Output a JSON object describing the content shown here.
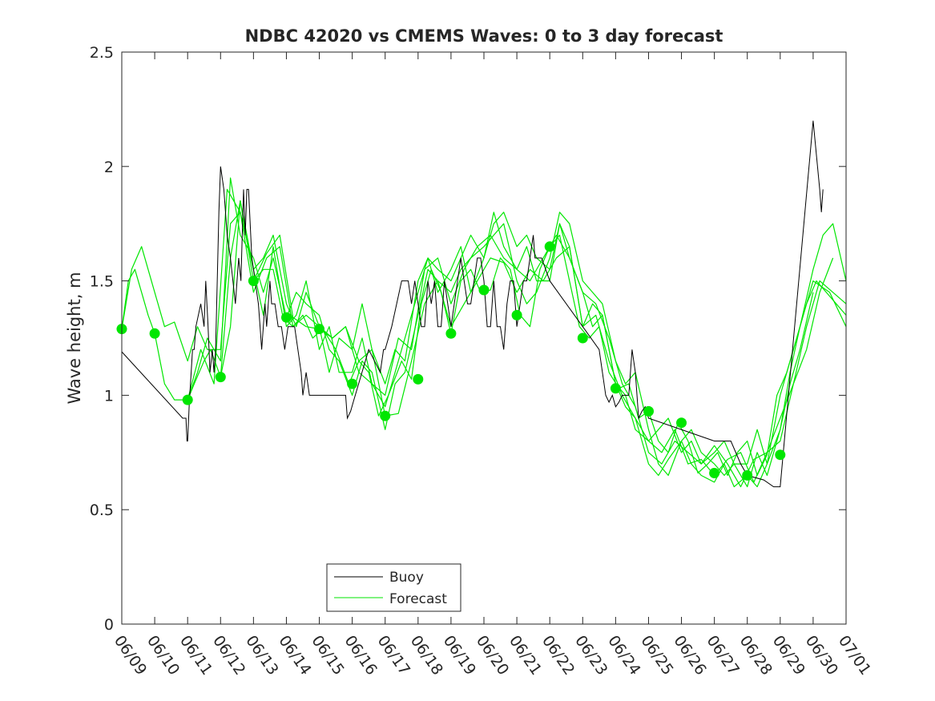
{
  "chart_data": {
    "type": "line",
    "title": "NDBC 42020 vs CMEMS Waves: 0 to 3 day forecast",
    "xlabel": "",
    "ylabel": "Wave height, m",
    "xlim": [
      0,
      22
    ],
    "ylim": [
      0,
      2.5
    ],
    "x_tick_labels": [
      "06/09",
      "06/10",
      "06/11",
      "06/12",
      "06/13",
      "06/14",
      "06/15",
      "06/16",
      "06/17",
      "06/18",
      "06/19",
      "06/20",
      "06/21",
      "06/22",
      "06/23",
      "06/24",
      "06/25",
      "06/26",
      "06/27",
      "06/28",
      "06/29",
      "06/30",
      "07/01"
    ],
    "y_ticks": [
      0,
      0.5,
      1,
      1.5,
      2,
      2.5
    ],
    "y_tick_labels": [
      "0",
      "0.5",
      "1",
      "1.5",
      "2",
      "2.5"
    ],
    "grid": false,
    "legend": {
      "position": "bottom-left",
      "entries": [
        "Buoy",
        "Forecast"
      ]
    },
    "colors": {
      "buoy": "#000000",
      "forecast": "#00e600",
      "axes": "#262626"
    },
    "buoy": {
      "name": "Buoy",
      "x": [
        0,
        1.85,
        1.95,
        1.98,
        2.0,
        2.05,
        2.15,
        2.2,
        2.25,
        2.4,
        2.5,
        2.55,
        2.62,
        2.68,
        2.75,
        2.8,
        2.85,
        2.95,
        3.0,
        3.1,
        3.2,
        3.3,
        3.45,
        3.55,
        3.62,
        3.7,
        3.75,
        3.8,
        3.85,
        3.95,
        4.05,
        4.15,
        4.2,
        4.25,
        4.35,
        4.4,
        4.5,
        4.55,
        4.65,
        4.75,
        4.85,
        4.95,
        5.05,
        5.1,
        5.15,
        5.25,
        5.35,
        5.45,
        5.5,
        5.6,
        5.7,
        5.8,
        5.9,
        6.0,
        6.5,
        6.7,
        6.8,
        6.85,
        6.95,
        7.05,
        7.5,
        7.85,
        7.95,
        8.0,
        8.2,
        8.5,
        8.6,
        8.7,
        8.8,
        8.9,
        9.1,
        9.2,
        9.3,
        9.4,
        9.5,
        9.6,
        9.7,
        9.8,
        9.9,
        10.0,
        10.1,
        10.2,
        10.3,
        10.4,
        10.5,
        10.6,
        10.7,
        10.8,
        10.9,
        11.0,
        11.1,
        11.2,
        11.3,
        11.4,
        11.5,
        11.6,
        11.7,
        11.8,
        11.9,
        12.0,
        12.1,
        12.2,
        12.3,
        12.4,
        12.5,
        12.55,
        12.65,
        12.75,
        13.0,
        14.0,
        14.5,
        14.6,
        14.7,
        14.8,
        14.9,
        15.0,
        15.1,
        15.2,
        15.3,
        15.4,
        15.5,
        15.6,
        15.7,
        15.8,
        15.9,
        16.0,
        18.0,
        18.5,
        18.8,
        19.0,
        19.5,
        19.8,
        20.0,
        21.0,
        21.2,
        21.25,
        21.3
      ],
      "y": [
        1.19,
        0.9,
        0.9,
        0.8,
        0.8,
        0.96,
        1.2,
        1.2,
        1.3,
        1.4,
        1.3,
        1.5,
        1.3,
        1.1,
        1.2,
        1.1,
        1.2,
        1.8,
        2.0,
        1.9,
        1.7,
        1.6,
        1.4,
        1.6,
        1.5,
        1.9,
        1.7,
        1.9,
        1.9,
        1.6,
        1.5,
        1.4,
        1.3,
        1.2,
        1.4,
        1.3,
        1.5,
        1.4,
        1.4,
        1.3,
        1.3,
        1.2,
        1.3,
        1.3,
        1.3,
        1.3,
        1.2,
        1.1,
        1.0,
        1.1,
        1.0,
        1.0,
        1.0,
        1.0,
        1.0,
        1.0,
        1.0,
        0.9,
        0.93,
        0.98,
        1.2,
        1.1,
        1.2,
        1.2,
        1.3,
        1.5,
        1.5,
        1.5,
        1.4,
        1.5,
        1.3,
        1.3,
        1.5,
        1.4,
        1.5,
        1.3,
        1.3,
        1.5,
        1.4,
        1.3,
        1.4,
        1.5,
        1.6,
        1.5,
        1.4,
        1.4,
        1.5,
        1.6,
        1.6,
        1.5,
        1.3,
        1.3,
        1.5,
        1.3,
        1.3,
        1.2,
        1.4,
        1.5,
        1.5,
        1.3,
        1.4,
        1.5,
        1.5,
        1.6,
        1.7,
        1.6,
        1.6,
        1.6,
        1.5,
        1.3,
        1.2,
        1.1,
        1.0,
        0.97,
        1.0,
        0.95,
        0.97,
        1.0,
        1.0,
        1.0,
        1.2,
        1.1,
        0.9,
        0.93,
        0.95,
        0.9,
        0.8,
        0.8,
        0.7,
        0.65,
        0.63,
        0.6,
        0.6,
        2.2,
        1.9,
        1.8,
        1.9
      ]
    },
    "forecast_start_points": {
      "x": [
        0,
        1,
        2,
        3,
        4,
        5,
        6,
        7,
        8,
        9,
        10,
        11,
        12,
        13,
        14,
        15,
        16,
        17,
        18,
        19,
        20
      ],
      "y": [
        1.29,
        1.27,
        0.98,
        1.08,
        1.5,
        1.34,
        1.29,
        1.05,
        0.91,
        1.07,
        1.27,
        1.46,
        1.35,
        1.65,
        1.25,
        1.03,
        0.93,
        0.88,
        0.66,
        0.65,
        0.74
      ]
    },
    "forecast_series": [
      {
        "x": [
          0,
          0.2,
          0.4,
          0.6,
          0.8,
          1.0,
          1.3,
          1.6,
          2.0,
          2.2,
          2.5,
          2.7,
          3.0,
          3.3,
          3.6,
          4.0,
          4.3,
          4.6,
          4.9,
          5.2,
          5.5,
          5.8,
          6.1,
          6.5,
          6.9,
          7.2,
          7.5,
          7.8,
          8.1,
          8.5,
          8.8,
          9.1,
          9.4,
          9.7,
          10.0,
          10.3,
          10.6,
          10.9,
          11.2,
          11.5,
          11.8,
          12.1,
          12.4,
          12.7,
          13.0,
          13.3,
          13.6,
          13.9,
          14.2,
          14.5,
          14.8,
          15.1,
          15.4,
          15.7,
          16.0,
          16.3,
          16.6,
          16.9,
          17.2,
          17.5,
          17.8,
          18.1,
          18.4,
          18.7,
          19.0,
          19.3,
          19.6,
          19.9,
          20.2,
          20.5,
          20.8,
          21.1,
          21.4,
          21.7,
          22.0
        ],
        "y": [
          1.29,
          1.5,
          1.55,
          1.45,
          1.35,
          1.27,
          1.05,
          0.98,
          0.98,
          1.05,
          1.15,
          1.2,
          1.08,
          1.6,
          1.85,
          1.5,
          1.55,
          1.55,
          1.34,
          1.3,
          1.35,
          1.25,
          1.29,
          1.2,
          1.05,
          1.15,
          1.1,
          0.91,
          1.0,
          1.15,
          1.07,
          1.4,
          1.55,
          1.45,
          1.27,
          1.5,
          1.55,
          1.45,
          1.46,
          1.6,
          1.55,
          1.35,
          1.3,
          1.55,
          1.65,
          1.7,
          1.5,
          1.3,
          1.25,
          1.3,
          1.1,
          1.03,
          1.05,
          0.9,
          0.93,
          0.8,
          0.75,
          0.88,
          0.8,
          0.66,
          0.7,
          0.75,
          0.65,
          0.75,
          0.8,
          0.65,
          0.74,
          1.0,
          1.1,
          1.25,
          1.4,
          1.5,
          1.45,
          1.4,
          1.35
        ]
      },
      {
        "x": [
          0,
          0.3,
          0.6,
          1.0,
          1.3,
          1.6,
          2.0,
          2.3,
          2.6,
          3.0,
          3.3,
          3.6,
          4.0,
          4.3,
          4.6,
          5.0,
          5.3,
          5.6,
          6.0,
          6.3,
          6.6,
          7.0,
          7.3,
          7.6,
          8.0,
          8.3,
          8.6,
          9.0,
          9.3,
          9.6,
          10.0,
          10.3,
          10.6,
          11.0,
          11.3,
          11.6,
          12.0,
          12.3,
          12.6,
          13.0,
          13.3,
          13.6,
          14.0,
          14.3,
          14.6,
          15.0,
          15.3,
          15.6,
          16.0,
          16.3,
          16.6,
          17.0,
          17.3,
          17.6,
          18.0,
          18.3,
          18.6,
          19.0,
          19.3,
          19.6,
          20.0,
          20.3,
          20.6,
          21.0,
          21.3,
          21.6,
          22.0
        ],
        "y": [
          1.29,
          1.55,
          1.65,
          1.45,
          1.3,
          1.32,
          1.15,
          1.3,
          1.2,
          1.2,
          1.75,
          1.8,
          1.55,
          1.6,
          1.7,
          1.4,
          1.3,
          1.45,
          1.3,
          1.1,
          1.25,
          1.2,
          1.4,
          1.2,
          1.05,
          1.2,
          1.15,
          1.5,
          1.6,
          1.55,
          1.5,
          1.6,
          1.7,
          1.6,
          1.75,
          1.8,
          1.65,
          1.7,
          1.6,
          1.55,
          1.75,
          1.6,
          1.45,
          1.3,
          1.35,
          1.05,
          1.0,
          0.85,
          0.8,
          0.85,
          0.9,
          0.75,
          0.8,
          0.7,
          0.75,
          0.8,
          0.7,
          0.7,
          0.85,
          0.7,
          0.85,
          1.1,
          1.3,
          1.55,
          1.7,
          1.75,
          1.5
        ]
      },
      {
        "x": [
          2.0,
          2.3,
          2.6,
          3.0,
          3.3,
          3.6,
          4.0,
          4.3,
          4.6,
          5.0,
          5.3,
          5.6,
          6.0,
          6.3,
          6.6,
          7.0,
          7.3,
          7.6,
          8.0,
          8.3,
          8.6,
          9.0,
          9.3,
          9.6,
          10.0,
          10.3,
          10.6,
          11.0,
          11.3,
          11.6,
          12.0,
          12.3,
          12.6,
          13.0,
          13.3,
          13.6,
          14.0,
          14.3,
          14.6,
          15.0,
          15.3,
          15.6,
          16.0,
          16.3,
          16.6,
          17.0,
          17.3,
          17.6,
          18.0,
          18.3,
          18.6,
          19.0,
          19.3,
          19.6,
          20.0,
          20.3,
          20.6,
          21.0
        ],
        "y": [
          0.98,
          1.1,
          1.25,
          1.15,
          1.95,
          1.7,
          1.6,
          1.45,
          1.6,
          1.34,
          1.45,
          1.4,
          1.35,
          1.2,
          1.15,
          1.0,
          1.15,
          1.1,
          0.85,
          1.05,
          1.1,
          1.35,
          1.55,
          1.5,
          1.45,
          1.55,
          1.6,
          1.65,
          1.7,
          1.75,
          1.5,
          1.4,
          1.45,
          1.6,
          1.8,
          1.75,
          1.5,
          1.45,
          1.4,
          1.15,
          1.05,
          1.1,
          0.85,
          0.7,
          0.65,
          0.8,
          0.85,
          0.75,
          0.7,
          0.65,
          0.7,
          0.6,
          0.75,
          0.65,
          0.85,
          1.05,
          1.2,
          1.45
        ]
      },
      {
        "x": [
          2.0,
          2.4,
          2.8,
          3.2,
          3.6,
          4.0,
          4.4,
          4.8,
          5.2,
          5.6,
          6.0,
          6.4,
          6.8,
          7.2,
          7.6,
          8.0,
          8.4,
          8.8,
          9.2,
          9.6,
          10.0,
          10.4,
          10.8,
          11.2,
          11.6,
          12.0,
          12.4,
          12.8,
          13.2,
          13.6,
          14.0,
          14.4,
          14.8,
          15.2,
          15.6,
          16.0,
          16.4,
          16.8,
          17.2,
          17.6,
          18.0,
          18.4,
          18.8,
          19.2,
          19.6,
          20.0,
          20.4,
          20.8,
          21.2,
          21.6,
          22.0
        ],
        "y": [
          0.98,
          1.2,
          1.05,
          1.9,
          1.8,
          1.45,
          1.6,
          1.65,
          1.3,
          1.35,
          1.3,
          1.25,
          1.3,
          1.1,
          1.05,
          1.0,
          1.25,
          1.2,
          1.55,
          1.6,
          1.4,
          1.55,
          1.65,
          1.7,
          1.6,
          1.55,
          1.5,
          1.6,
          1.7,
          1.6,
          1.45,
          1.4,
          1.25,
          1.05,
          0.95,
          0.75,
          0.7,
          0.8,
          0.75,
          0.7,
          0.78,
          0.7,
          0.6,
          0.72,
          0.75,
          0.9,
          1.05,
          1.3,
          1.5,
          1.45,
          1.4
        ]
      },
      {
        "x": [
          3.0,
          3.3,
          3.6,
          4.0,
          4.3,
          4.6,
          5.0,
          5.3,
          5.6,
          6.0,
          6.3,
          6.6,
          7.0,
          7.3,
          7.6,
          8.0,
          8.3,
          8.6,
          9.0,
          9.3,
          9.6,
          10.0,
          10.3,
          10.6,
          11.0,
          11.3,
          11.6,
          12.0,
          12.3,
          12.6,
          13.0,
          13.3,
          13.6,
          14.0,
          14.3,
          14.6,
          15.0,
          15.3,
          15.6,
          16.0,
          16.3,
          16.6,
          17.0,
          17.3,
          17.6,
          18.0,
          18.3,
          18.6,
          19.0,
          19.3,
          19.6,
          20.0,
          20.5,
          21.0,
          21.5,
          22.0
        ],
        "y": [
          1.08,
          1.3,
          1.85,
          1.55,
          1.35,
          1.65,
          1.3,
          1.35,
          1.5,
          1.2,
          1.3,
          1.1,
          1.1,
          1.25,
          1.05,
          0.95,
          1.1,
          1.25,
          1.45,
          1.6,
          1.45,
          1.55,
          1.65,
          1.45,
          1.6,
          1.8,
          1.65,
          1.55,
          1.65,
          1.5,
          1.5,
          1.75,
          1.65,
          1.3,
          1.4,
          1.35,
          1.05,
          0.95,
          0.9,
          0.7,
          0.65,
          0.72,
          0.8,
          0.7,
          0.65,
          0.62,
          0.7,
          0.6,
          0.65,
          0.6,
          0.7,
          1.0,
          1.25,
          1.5,
          1.45,
          1.3
        ]
      },
      {
        "x": [
          4.0,
          4.4,
          4.8,
          5.2,
          5.6,
          6.0,
          6.4,
          6.8,
          7.2,
          7.6,
          8.0,
          8.4,
          8.8,
          9.2,
          9.6,
          10.0,
          10.4,
          10.8,
          11.2,
          11.6,
          12.0,
          12.4,
          12.8,
          13.2,
          13.6,
          14.0,
          14.4,
          14.8,
          15.2,
          15.6,
          16.0,
          16.4,
          16.8,
          17.2,
          17.6,
          18.0,
          18.4,
          18.8,
          19.2,
          19.6,
          20.0,
          20.4,
          20.8,
          21.2,
          21.6
        ],
        "y": [
          1.5,
          1.62,
          1.7,
          1.34,
          1.3,
          1.29,
          1.25,
          1.3,
          1.15,
          1.2,
          0.91,
          0.92,
          1.15,
          1.4,
          1.5,
          1.3,
          1.4,
          1.5,
          1.6,
          1.58,
          1.45,
          1.55,
          1.5,
          1.6,
          1.65,
          1.3,
          1.35,
          1.15,
          1.0,
          0.9,
          0.8,
          0.75,
          0.85,
          0.7,
          0.72,
          0.65,
          0.72,
          0.75,
          0.62,
          0.75,
          0.8,
          1.05,
          1.2,
          1.45,
          1.6
        ]
      }
    ]
  }
}
